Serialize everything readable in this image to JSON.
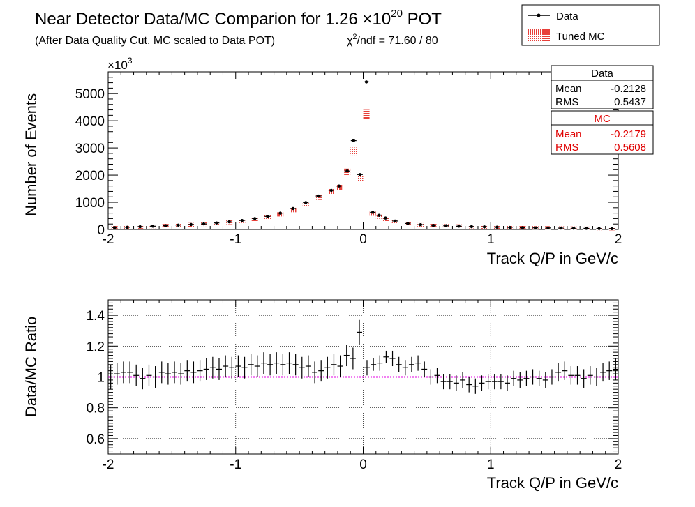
{
  "header": {
    "title_main": "Near Detector Data/MC Comparion for 1.26 ×10",
    "title_exp": "20",
    "title_tail": " POT",
    "subtitle": "(After Data Quality Cut, MC scaled to Data POT)",
    "chi2_chi": "χ",
    "chi2_sup": "2",
    "chi2_rest": "/ndf = 71.60 / 80"
  },
  "legend": {
    "data_label": "Data",
    "mc_label": "Tuned MC"
  },
  "stats": {
    "data": {
      "title": "Data",
      "mean_label": "Mean",
      "mean_value": "-0.2128",
      "rms_label": "RMS",
      "rms_value": "0.5437"
    },
    "mc": {
      "title": "MC",
      "mean_label": "Mean",
      "mean_value": "-0.2179",
      "rms_label": "RMS",
      "rms_value": "0.5608"
    }
  },
  "colors": {
    "data": "#000000",
    "mc": "#e8403a",
    "ratio_line": "#e600e6"
  },
  "chart_data": [
    {
      "type": "scatter",
      "xlabel": "Track Q/P in GeV/c",
      "ylabel": "Number of Events",
      "y_multiplier": "×10",
      "y_multiplier_exp": "3",
      "xlim": [
        -2,
        2
      ],
      "ylim": [
        0,
        5800
      ],
      "xticks": [
        -2,
        -1,
        0,
        1,
        2
      ],
      "yticks": [
        0,
        1000,
        2000,
        3000,
        4000,
        5000
      ],
      "series": [
        {
          "name": "Data",
          "x": [
            -1.95,
            -1.85,
            -1.75,
            -1.65,
            -1.55,
            -1.45,
            -1.35,
            -1.25,
            -1.15,
            -1.05,
            -0.95,
            -0.85,
            -0.75,
            -0.65,
            -0.55,
            -0.45,
            -0.35,
            -0.25,
            -0.19,
            -0.125,
            -0.075,
            -0.025,
            0.025,
            0.075,
            0.125,
            0.175,
            0.25,
            0.35,
            0.45,
            0.55,
            0.65,
            0.75,
            0.85,
            0.95,
            1.05,
            1.15,
            1.25,
            1.35,
            1.45,
            1.55,
            1.65,
            1.75,
            1.85,
            1.95
          ],
          "y": [
            70,
            80,
            100,
            120,
            140,
            160,
            180,
            205,
            240,
            280,
            330,
            400,
            480,
            600,
            770,
            990,
            1230,
            1440,
            1600,
            2150,
            3270,
            2020,
            5430,
            630,
            520,
            420,
            310,
            220,
            175,
            150,
            135,
            120,
            105,
            95,
            85,
            75,
            65,
            60,
            55,
            50,
            45,
            40,
            35,
            30
          ]
        },
        {
          "name": "Tuned MC",
          "x": [
            -1.95,
            -1.85,
            -1.75,
            -1.65,
            -1.55,
            -1.45,
            -1.35,
            -1.25,
            -1.15,
            -1.05,
            -0.95,
            -0.85,
            -0.75,
            -0.65,
            -0.55,
            -0.45,
            -0.35,
            -0.25,
            -0.19,
            -0.125,
            -0.075,
            -0.025,
            0.025,
            0.075,
            0.125,
            0.175,
            0.25,
            0.35,
            0.45,
            0.55,
            0.65,
            0.75,
            0.85,
            0.95,
            1.05,
            1.15,
            1.25,
            1.35,
            1.45,
            1.55,
            1.65,
            1.75,
            1.85,
            1.95
          ],
          "y": [
            68,
            77,
            96,
            113,
            133,
            150,
            170,
            195,
            225,
            263,
            308,
            375,
            445,
            555,
            715,
            930,
            1180,
            1390,
            1540,
            2120,
            2880,
            1880,
            4230,
            580,
            470,
            380,
            285,
            205,
            165,
            145,
            130,
            120,
            105,
            95,
            85,
            77,
            67,
            60,
            55,
            50,
            45,
            40,
            35,
            30
          ]
        }
      ]
    },
    {
      "type": "scatter",
      "xlabel": "Track Q/P in GeV/c",
      "ylabel": "Data/MC Ratio",
      "xlim": [
        -2,
        2
      ],
      "ylim": [
        0.5,
        1.5
      ],
      "xticks": [
        -2,
        -1,
        0,
        1,
        2
      ],
      "yticks": [
        0.6,
        0.8,
        1,
        1.2,
        1.4
      ],
      "reference_line": 1,
      "series": [
        {
          "name": "Ratio",
          "x": [
            -1.98,
            -1.93,
            -1.88,
            -1.83,
            -1.78,
            -1.73,
            -1.68,
            -1.63,
            -1.58,
            -1.53,
            -1.48,
            -1.43,
            -1.38,
            -1.33,
            -1.28,
            -1.23,
            -1.18,
            -1.13,
            -1.08,
            -1.03,
            -0.98,
            -0.93,
            -0.88,
            -0.83,
            -0.78,
            -0.73,
            -0.68,
            -0.63,
            -0.58,
            -0.53,
            -0.48,
            -0.43,
            -0.38,
            -0.33,
            -0.28,
            -0.23,
            -0.18,
            -0.13,
            -0.08,
            -0.03,
            0.03,
            0.08,
            0.13,
            0.18,
            0.23,
            0.28,
            0.33,
            0.38,
            0.43,
            0.48,
            0.53,
            0.58,
            0.63,
            0.68,
            0.73,
            0.78,
            0.83,
            0.88,
            0.93,
            0.98,
            1.03,
            1.08,
            1.13,
            1.18,
            1.23,
            1.28,
            1.33,
            1.38,
            1.43,
            1.48,
            1.53,
            1.58,
            1.63,
            1.68,
            1.73,
            1.78,
            1.83,
            1.88,
            1.93,
            1.98
          ],
          "y": [
            1.0,
            1.02,
            1.03,
            1.03,
            1.01,
            0.99,
            1.01,
            1.0,
            1.03,
            1.02,
            1.03,
            1.02,
            1.04,
            1.03,
            1.04,
            1.05,
            1.06,
            1.05,
            1.07,
            1.06,
            1.07,
            1.06,
            1.08,
            1.07,
            1.09,
            1.08,
            1.09,
            1.08,
            1.09,
            1.08,
            1.06,
            1.07,
            1.03,
            1.04,
            1.06,
            1.08,
            1.07,
            1.14,
            1.12,
            1.29,
            1.06,
            1.08,
            1.09,
            1.13,
            1.12,
            1.08,
            1.06,
            1.08,
            1.09,
            1.05,
            1.0,
            1.01,
            0.97,
            0.97,
            0.96,
            0.98,
            0.95,
            0.94,
            0.96,
            0.97,
            0.97,
            0.97,
            0.96,
            0.99,
            0.98,
            0.99,
            1.0,
            0.99,
            0.98,
            1.0,
            1.03,
            1.04,
            1.01,
            1.01,
            0.99,
            1.01,
            1.0,
            1.03,
            1.04,
            1.05
          ],
          "err": [
            0.08,
            0.07,
            0.07,
            0.07,
            0.07,
            0.07,
            0.07,
            0.07,
            0.07,
            0.07,
            0.07,
            0.07,
            0.07,
            0.07,
            0.07,
            0.07,
            0.07,
            0.07,
            0.07,
            0.07,
            0.07,
            0.07,
            0.07,
            0.07,
            0.07,
            0.07,
            0.07,
            0.07,
            0.07,
            0.07,
            0.07,
            0.07,
            0.07,
            0.07,
            0.07,
            0.07,
            0.07,
            0.07,
            0.07,
            0.08,
            0.05,
            0.04,
            0.05,
            0.04,
            0.05,
            0.05,
            0.05,
            0.05,
            0.05,
            0.05,
            0.05,
            0.05,
            0.05,
            0.05,
            0.05,
            0.05,
            0.05,
            0.05,
            0.05,
            0.05,
            0.05,
            0.05,
            0.05,
            0.05,
            0.05,
            0.05,
            0.05,
            0.05,
            0.05,
            0.05,
            0.06,
            0.06,
            0.06,
            0.06,
            0.06,
            0.06,
            0.06,
            0.06,
            0.06,
            0.07
          ]
        }
      ]
    }
  ]
}
